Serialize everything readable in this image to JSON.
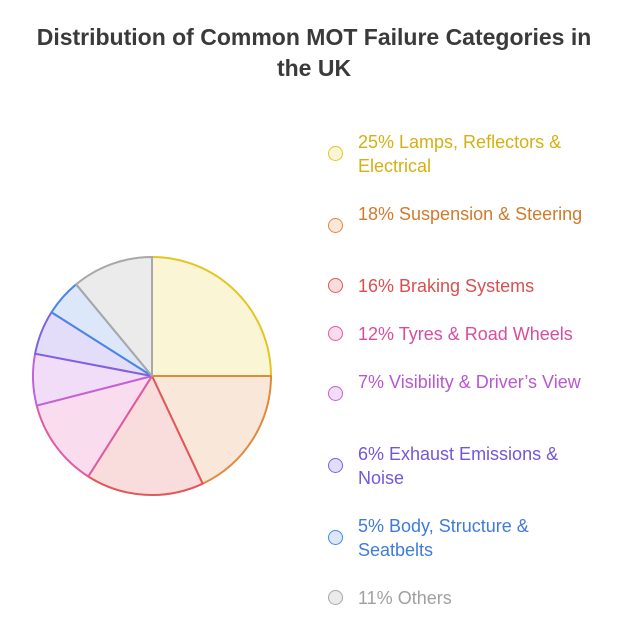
{
  "chart_data": {
    "type": "pie",
    "title": "Distribution of Common MOT Failure Categories in the UK",
    "slices": [
      {
        "label": "Lamps, Reflectors & Electrical",
        "value": 25,
        "legend": "25% Lamps, Reflectors & Electrical",
        "stroke": "#E4C524",
        "fill": "#FAF5D5",
        "text_color": "#D4B012"
      },
      {
        "label": "Suspension & Steering",
        "value": 18,
        "legend": "18% Suspension & Steering",
        "stroke": "#E08A3C",
        "fill": "#F9E7D9",
        "text_color": "#D07A2C"
      },
      {
        "label": "Braking Systems",
        "value": 16,
        "legend": "16% Braking Systems",
        "stroke": "#E0585A",
        "fill": "#F9DDDD",
        "text_color": "#DB4F4F"
      },
      {
        "label": "Tyres & Road Wheels",
        "value": 12,
        "legend": "12% Tyres & Road Wheels",
        "stroke": "#E05AA5",
        "fill": "#F9DDEF",
        "text_color": "#D94E9C"
      },
      {
        "label": "Visibility & Driver's View",
        "value": 7,
        "legend": "7% Visibility & Driver’s View",
        "stroke": "#C263D9",
        "fill": "#F1DDF7",
        "text_color": "#B957D2"
      },
      {
        "label": "Exhaust Emissions & Noise",
        "value": 6,
        "legend": "6% Exhaust Emissions & Noise",
        "stroke": "#7E62E0",
        "fill": "#E3DDF9",
        "text_color": "#7257D9"
      },
      {
        "label": "Body, Structure & Seatbelts",
        "value": 5,
        "legend": "5% Body, Structure & Seatbelts",
        "stroke": "#4A86E8",
        "fill": "#DCE8FA",
        "text_color": "#3F7BDD"
      },
      {
        "label": "Others",
        "value": 11,
        "legend": "11% Others",
        "stroke": "#A8A8A8",
        "fill": "#EBEBEB",
        "text_color": "#A0A0A0"
      }
    ]
  }
}
